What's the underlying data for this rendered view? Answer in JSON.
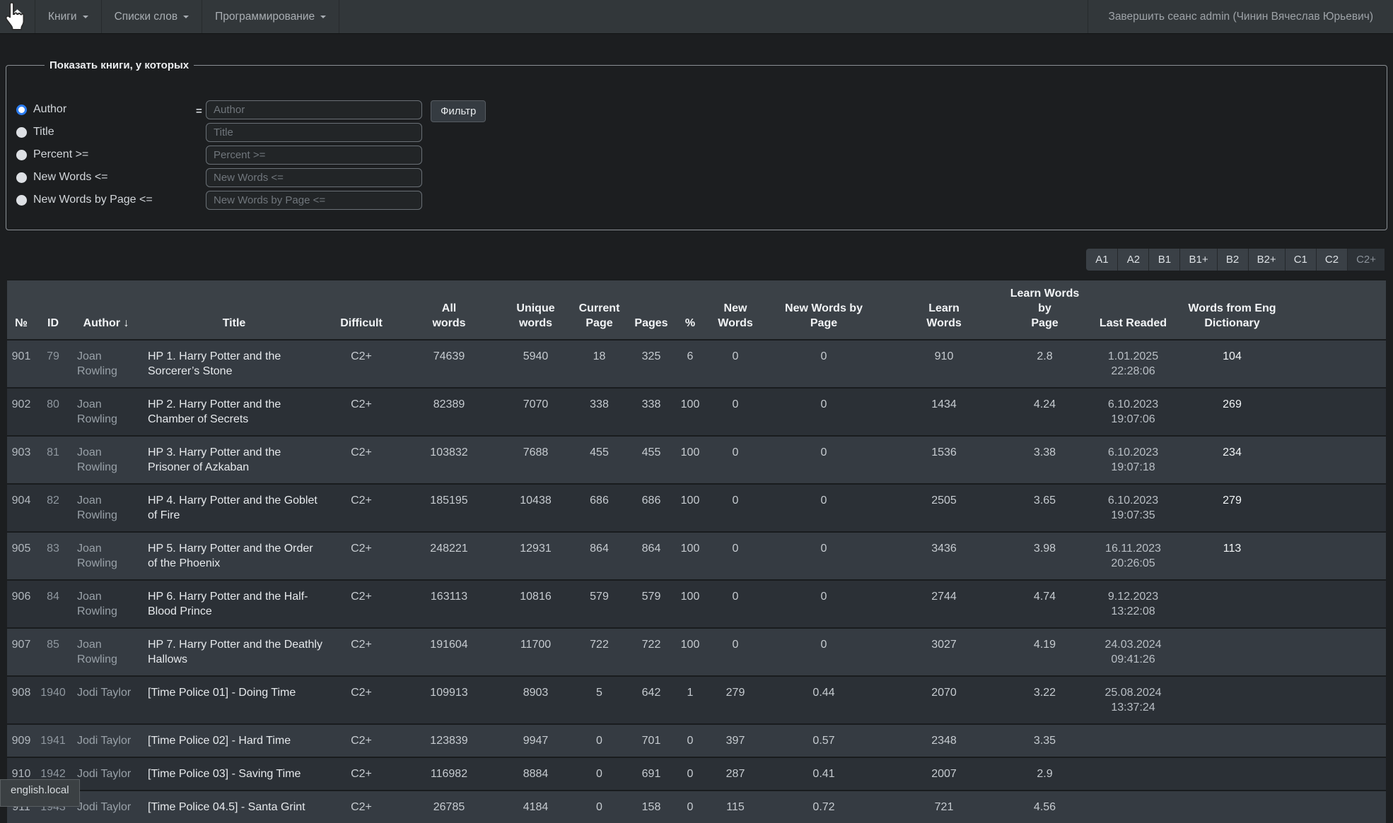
{
  "navbar": {
    "items": [
      {
        "id": "books",
        "label": "Книги"
      },
      {
        "id": "word-lists",
        "label": "Списки слов"
      },
      {
        "id": "programming",
        "label": "Программирование"
      }
    ],
    "logout_label": "Завершить сеанс admin (Чинин Вячеслав Юрьевич)"
  },
  "filter": {
    "legend": "Показать книги, у которых",
    "equals_sign": "=",
    "button_label": "Фильтр",
    "options": [
      {
        "id": "author",
        "label": "Author",
        "placeholder": "Author",
        "selected": true
      },
      {
        "id": "title",
        "label": "Title",
        "placeholder": "Title",
        "selected": false
      },
      {
        "id": "percent",
        "label": "Percent >=",
        "placeholder": "Percent >=",
        "selected": false
      },
      {
        "id": "new-words",
        "label": "New Words <=",
        "placeholder": "New Words <=",
        "selected": false
      },
      {
        "id": "new-words-by-page",
        "label": "New Words by Page <=",
        "placeholder": "New Words by Page <=",
        "selected": false
      }
    ]
  },
  "levels": {
    "buttons": [
      "A1",
      "A2",
      "B1",
      "B1+",
      "B2",
      "B2+",
      "C1",
      "C2",
      "C2+"
    ],
    "active": "C2+"
  },
  "table": {
    "columns": [
      "№",
      "ID",
      "Author ↓",
      "Title",
      "Difficult",
      "All\nwords",
      "Unique\nwords",
      "Current\nPage",
      "Pages",
      "%",
      "New\nWords",
      "New Words by\nPage",
      "Learn\nWords",
      "Learn Words by\nPage",
      "Last Readed",
      "Words from Eng\nDictionary"
    ],
    "rows": [
      [
        "901",
        "79",
        "Joan Rowling",
        "HP 1. Harry Potter and the Sorcerer’s Stone",
        "C2+",
        "74639",
        "5940",
        "18",
        "325",
        "6",
        "0",
        "0",
        "910",
        "2.8",
        "1.01.2025\n22:28:06",
        "104"
      ],
      [
        "902",
        "80",
        "Joan Rowling",
        "HP 2. Harry Potter and the Chamber of Secrets",
        "C2+",
        "82389",
        "7070",
        "338",
        "338",
        "100",
        "0",
        "0",
        "1434",
        "4.24",
        "6.10.2023\n19:07:06",
        "269"
      ],
      [
        "903",
        "81",
        "Joan Rowling",
        "HP 3. Harry Potter and the Prisoner of Azkaban",
        "C2+",
        "103832",
        "7688",
        "455",
        "455",
        "100",
        "0",
        "0",
        "1536",
        "3.38",
        "6.10.2023\n19:07:18",
        "234"
      ],
      [
        "904",
        "82",
        "Joan Rowling",
        "HP 4. Harry Potter and the Goblet of Fire",
        "C2+",
        "185195",
        "10438",
        "686",
        "686",
        "100",
        "0",
        "0",
        "2505",
        "3.65",
        "6.10.2023\n19:07:35",
        "279"
      ],
      [
        "905",
        "83",
        "Joan Rowling",
        "HP 5. Harry Potter and the Order of the Phoenix",
        "C2+",
        "248221",
        "12931",
        "864",
        "864",
        "100",
        "0",
        "0",
        "3436",
        "3.98",
        "16.11.2023\n20:26:05",
        "113"
      ],
      [
        "906",
        "84",
        "Joan Rowling",
        "HP 6. Harry Potter and the Half-Blood Prince",
        "C2+",
        "163113",
        "10816",
        "579",
        "579",
        "100",
        "0",
        "0",
        "2744",
        "4.74",
        "9.12.2023\n13:22:08",
        ""
      ],
      [
        "907",
        "85",
        "Joan Rowling",
        "HP 7. Harry Potter and the Deathly Hallows",
        "C2+",
        "191604",
        "11700",
        "722",
        "722",
        "100",
        "0",
        "0",
        "3027",
        "4.19",
        "24.03.2024\n09:41:26",
        ""
      ],
      [
        "908",
        "1940",
        "Jodi Taylor",
        "[Time Police 01] - Doing Time",
        "C2+",
        "109913",
        "8903",
        "5",
        "642",
        "1",
        "279",
        "0.44",
        "2070",
        "3.22",
        "25.08.2024\n13:37:24",
        ""
      ],
      [
        "909",
        "1941",
        "Jodi Taylor",
        "[Time Police 02] - Hard Time",
        "C2+",
        "123839",
        "9947",
        "0",
        "701",
        "0",
        "397",
        "0.57",
        "2348",
        "3.35",
        "",
        ""
      ],
      [
        "910",
        "1942",
        "Jodi Taylor",
        "[Time Police 03] - Saving Time",
        "C2+",
        "116982",
        "8884",
        "0",
        "691",
        "0",
        "287",
        "0.41",
        "2007",
        "2.9",
        "",
        ""
      ],
      [
        "911",
        "1943",
        "Jodi Taylor",
        "[Time Police 04.5] - Santa Grint",
        "C2+",
        "26785",
        "4184",
        "0",
        "158",
        "0",
        "115",
        "0.72",
        "721",
        "4.56",
        "",
        ""
      ]
    ]
  },
  "status_bar": {
    "link_preview": "english.local"
  }
}
